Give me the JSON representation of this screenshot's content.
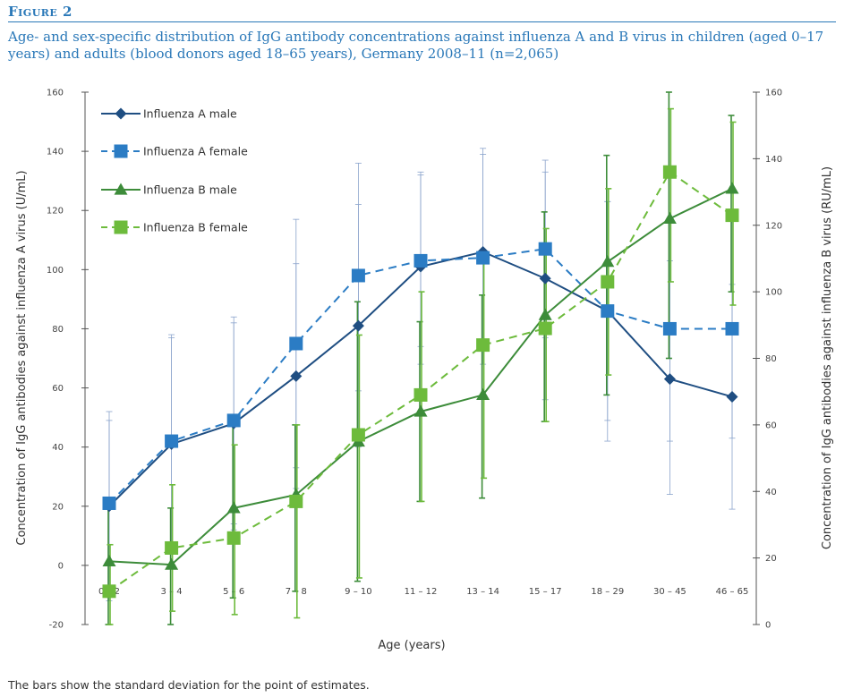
{
  "figure": {
    "label": "Figure 2",
    "caption": "Age- and sex-specific distribution of IgG antibody concentrations against influenza A and B virus in children (aged 0–17 years) and adults (blood donors aged 18–65 years), Germany 2008–11 (n=2,065)",
    "footnote": "The bars show the standard deviation for the point of estimates."
  },
  "colors": {
    "dark_blue": "#1f4e82",
    "light_blue": "#2b7cc4",
    "error_blue": "#8aa3cc",
    "dark_green": "#3d8c3a",
    "light_green": "#6dbb3c"
  },
  "chart_data": {
    "type": "line",
    "xlabel": "Age (years)",
    "ylabel_left": "Concentration of IgG antibodies against influenza A virus (U/mL)",
    "ylabel_right": "Concentration of IgG antibodies against influenza B virus (RU/mL)",
    "categories": [
      "0 – 2",
      "3 – 4",
      "5 – 6",
      "7 – 8",
      "9 – 10",
      "11 – 12",
      "13 – 14",
      "15 – 17",
      "18 – 29",
      "30 – 45",
      "46 – 65"
    ],
    "y_left": {
      "min": -20,
      "max": 160,
      "ticks": [
        "-20",
        "0",
        "20",
        "40",
        "60",
        "80",
        "100",
        "120",
        "140",
        "160"
      ]
    },
    "y_right": {
      "min": 0,
      "max": 160,
      "ticks": [
        "0",
        "20",
        "40",
        "60",
        "80",
        "100",
        "120",
        "140",
        "160"
      ]
    },
    "legend": [
      "Influenza A male",
      "Influenza A female",
      "Influenza B male",
      "Influenza B female"
    ],
    "legend_position": "top-left",
    "series": [
      {
        "name": "Influenza A male",
        "axis": "left",
        "marker": "diamond",
        "dash": false,
        "values": [
          20,
          41,
          48,
          64,
          81,
          101,
          106,
          97,
          86,
          63,
          57
        ],
        "err_low": [
          -12,
          6,
          12,
          26,
          40,
          68,
          73,
          56,
          49,
          24,
          19
        ],
        "err_high": [
          52,
          78,
          84,
          102,
          122,
          132,
          139,
          137,
          123,
          103,
          95
        ]
      },
      {
        "name": "Influenza A female",
        "axis": "left",
        "marker": "square",
        "dash": true,
        "values": [
          21,
          42,
          49,
          75,
          98,
          103,
          104,
          107,
          86,
          80,
          80
        ],
        "err_low": [
          -8,
          6,
          14,
          33,
          59,
          74,
          68,
          77,
          42,
          42,
          43
        ],
        "err_high": [
          49,
          77,
          82,
          117,
          136,
          133,
          141,
          133,
          123,
          116,
          117
        ]
      },
      {
        "name": "Influenza B male",
        "axis": "right",
        "marker": "triangle",
        "dash": false,
        "values": [
          19,
          18,
          35,
          39,
          55,
          64,
          69,
          93,
          109,
          122,
          131
        ],
        "err_low": [
          0,
          0,
          8,
          10,
          13,
          37,
          38,
          61,
          69,
          80,
          100
        ],
        "err_high": [
          38,
          35,
          60,
          60,
          97,
          91,
          99,
          124,
          141,
          160,
          153
        ]
      },
      {
        "name": "Influenza B female",
        "axis": "right",
        "marker": "square",
        "dash": true,
        "values": [
          10,
          23,
          26,
          37,
          57,
          69,
          84,
          89,
          103,
          136,
          123
        ],
        "err_low": [
          0,
          4,
          3,
          2,
          14,
          37,
          44,
          61,
          75,
          103,
          96
        ],
        "err_high": [
          24,
          42,
          54,
          60,
          87,
          100,
          111,
          119,
          131,
          155,
          151
        ]
      }
    ]
  }
}
